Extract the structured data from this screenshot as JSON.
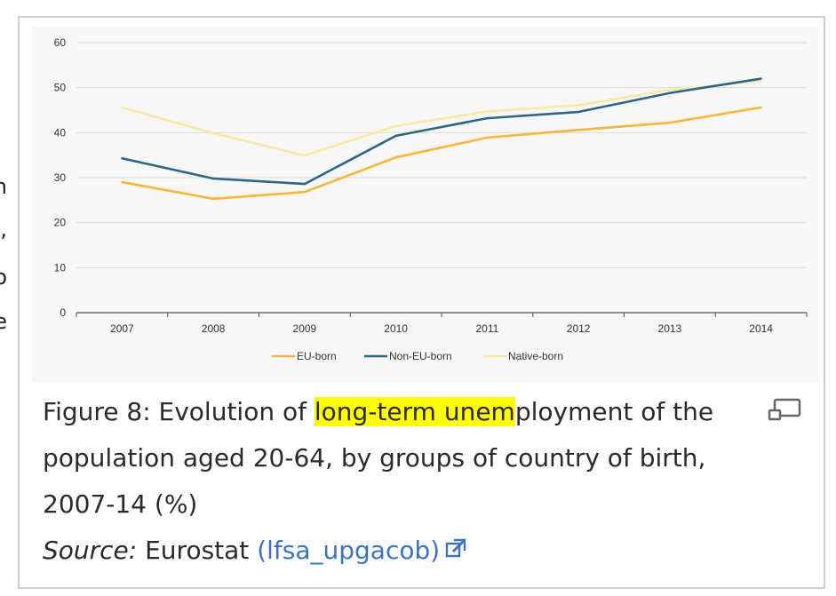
{
  "chart_data": {
    "type": "line",
    "categories": [
      "2007",
      "2008",
      "2009",
      "2010",
      "2011",
      "2012",
      "2013",
      "2014"
    ],
    "series": [
      {
        "name": "EU-born",
        "color": "#f5b63a",
        "values": [
          29.0,
          25.3,
          26.8,
          34.5,
          38.9,
          40.6,
          42.2,
          45.6
        ]
      },
      {
        "name": "Non-EU-born",
        "color": "#2d6688",
        "values": [
          34.3,
          29.8,
          28.6,
          39.3,
          43.2,
          44.6,
          48.8,
          52.0
        ]
      },
      {
        "name": "Native-born",
        "color": "#f7eba3",
        "values": [
          45.6,
          39.9,
          34.9,
          41.5,
          44.7,
          46.1,
          49.5,
          51.5
        ]
      }
    ],
    "y_ticks": [
      "0",
      "10",
      "20",
      "30",
      "40",
      "50",
      "60"
    ],
    "ylim": [
      0,
      60
    ],
    "grid": true,
    "legend_position": "bottom"
  },
  "caption": {
    "prefix": "Figure 8: Evolution of ",
    "highlight": "long-term unem",
    "rest": "ployment of the population aged 20-64, by groups of country of birth, 2007-14 (%)"
  },
  "source": {
    "label": "Source:",
    "provider": " Eurostat ",
    "link_text": "(lfsa_upgacob)"
  },
  "left_fragments": [
    "n",
    ",",
    "o",
    "e"
  ],
  "icons": {
    "expand": "expand-icon",
    "external_link": "external-link-icon"
  }
}
